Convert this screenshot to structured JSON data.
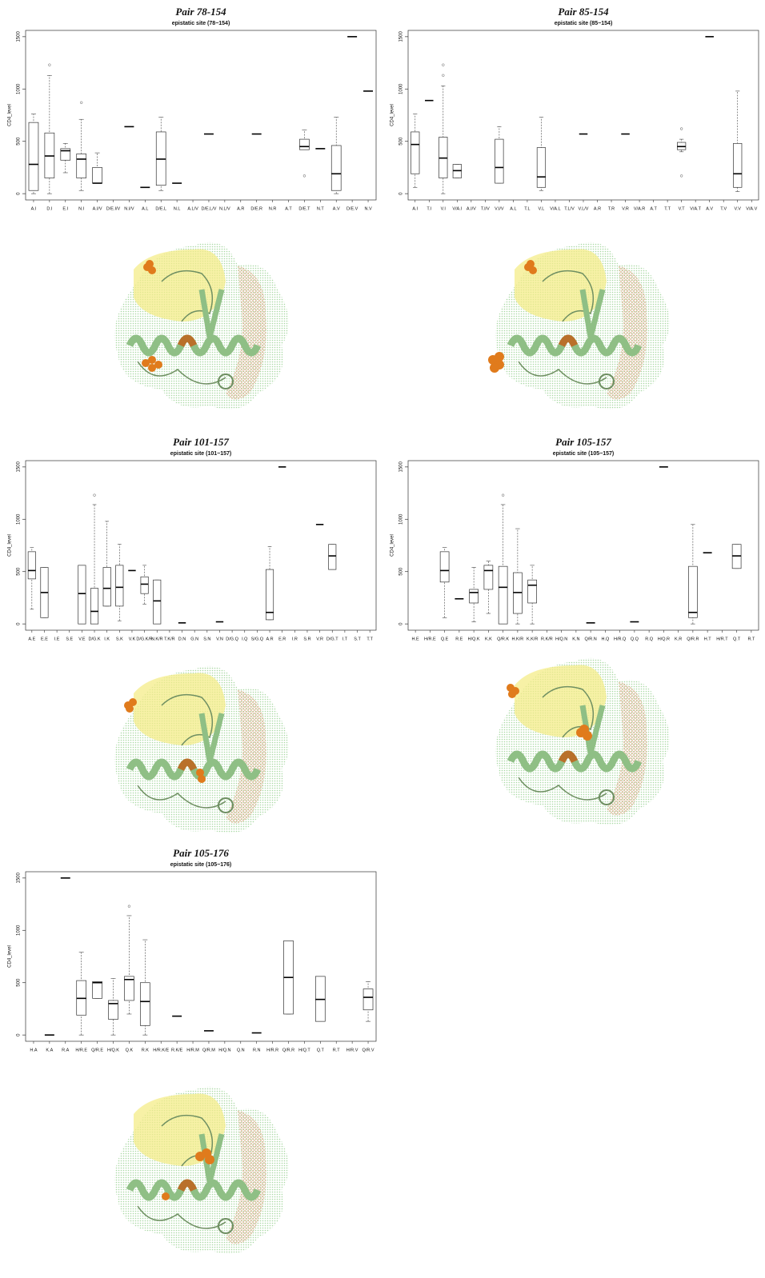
{
  "chart_data": [
    {
      "type": "box",
      "title": "Pair 78-154",
      "subtitle": "epistatic site (78−154)",
      "y_label": "CD4_level",
      "ylim": [
        -60,
        1560
      ],
      "yticks": [
        0,
        500,
        1000,
        1500
      ],
      "categories": [
        "A.I",
        "D.I",
        "E.I",
        "N.I",
        "A.I/V",
        "D/E.I/V",
        "N.I/V",
        "A.L",
        "D/E.L",
        "N.L",
        "A.L/V",
        "D/E.L/V",
        "N.L/V",
        "A.R",
        "D/E.R",
        "N.R",
        "A.T",
        "D/E.T",
        "N.T",
        "A.V",
        "D/E.V",
        "N.V"
      ],
      "boxes": [
        {
          "min": 0,
          "q1": 30,
          "median": 280,
          "q3": 680,
          "max": 760
        },
        {
          "min": 0,
          "q1": 150,
          "median": 360,
          "q3": 580,
          "max": 1130,
          "outliers": [
            1230
          ]
        },
        {
          "min": 200,
          "q1": 320,
          "median": 410,
          "q3": 430,
          "max": 480
        },
        {
          "min": 30,
          "q1": 150,
          "median": 330,
          "q3": 380,
          "max": 710,
          "outliers": [
            870
          ]
        },
        {
          "min": 100,
          "q1": 100,
          "median": 100,
          "q3": 250,
          "max": 390
        },
        null,
        {
          "median": 640
        },
        {
          "median": 60
        },
        {
          "min": 30,
          "q1": 80,
          "median": 330,
          "q3": 590,
          "max": 730
        },
        {
          "median": 100
        },
        null,
        {
          "median": 570
        },
        null,
        null,
        {
          "median": 570
        },
        null,
        null,
        {
          "min": 420,
          "q1": 420,
          "median": 450,
          "q3": 520,
          "max": 610,
          "outliers": [
            170
          ]
        },
        {
          "median": 430
        },
        {
          "min": 0,
          "q1": 30,
          "median": 190,
          "q3": 460,
          "max": 730
        },
        {
          "median": 1500
        },
        {
          "median": 980
        }
      ]
    },
    {
      "type": "box",
      "title": "Pair 85-154",
      "subtitle": "epistatic site (85−154)",
      "y_label": "CD4_level",
      "ylim": [
        -60,
        1560
      ],
      "yticks": [
        0,
        500,
        1000,
        1500
      ],
      "categories": [
        "A.I",
        "T.I",
        "V.I",
        "V/A.I",
        "A.I/V",
        "T.I/V",
        "V.I/V",
        "A.L",
        "T.L",
        "V.L",
        "V/A.L",
        "T.L/V",
        "V.L/V",
        "A.R",
        "T.R",
        "V.R",
        "V/A.R",
        "A.T",
        "T.T",
        "V.T",
        "V/A.T",
        "A.V",
        "T.V",
        "V.V",
        "V/A.V"
      ],
      "boxes": [
        {
          "min": 60,
          "q1": 190,
          "median": 470,
          "q3": 590,
          "max": 760
        },
        {
          "median": 890
        },
        {
          "min": 0,
          "q1": 150,
          "median": 340,
          "q3": 540,
          "max": 1030,
          "outliers": [
            1130,
            1230
          ]
        },
        {
          "min": 150,
          "q1": 150,
          "median": 220,
          "q3": 280,
          "max": 280
        },
        null,
        null,
        {
          "min": 100,
          "q1": 100,
          "median": 250,
          "q3": 520,
          "max": 640
        },
        null,
        null,
        {
          "min": 30,
          "q1": 60,
          "median": 160,
          "q3": 440,
          "max": 730
        },
        null,
        null,
        {
          "median": 570
        },
        null,
        null,
        {
          "median": 570
        },
        null,
        null,
        null,
        {
          "min": 400,
          "q1": 420,
          "median": 450,
          "q3": 490,
          "max": 520,
          "outliers": [
            620,
            170
          ]
        },
        null,
        {
          "median": 1500
        },
        null,
        {
          "min": 20,
          "q1": 60,
          "median": 190,
          "q3": 480,
          "max": 980
        },
        null
      ]
    },
    {
      "type": "box",
      "title": "Pair 101-157",
      "subtitle": "epistatic site (101−157)",
      "y_label": "CD4_level",
      "ylim": [
        -60,
        1560
      ],
      "yticks": [
        0,
        500,
        1000,
        1500
      ],
      "categories": [
        "A.E",
        "E.E",
        "I.E",
        "S.E",
        "V.E",
        "D/G.K",
        "I.K",
        "S.K",
        "V.K",
        "D/G.K/R",
        "N.K/R",
        "T.K/R",
        "D.N",
        "G.N",
        "S.N",
        "V.N",
        "D/G.Q",
        "I.Q",
        "S/G.Q",
        "A.R",
        "E.R",
        "I.R",
        "S.R",
        "V.R",
        "D/G.T",
        "I.T",
        "S.T",
        "T.T"
      ],
      "boxes": [
        {
          "min": 140,
          "q1": 430,
          "median": 510,
          "q3": 690,
          "max": 730
        },
        {
          "min": 60,
          "q1": 60,
          "median": 300,
          "q3": 540,
          "max": 540
        },
        null,
        null,
        {
          "min": 0,
          "q1": 0,
          "median": 290,
          "q3": 560,
          "max": 560
        },
        {
          "min": 0,
          "q1": 0,
          "median": 120,
          "q3": 340,
          "max": 1140,
          "outliers": [
            1230
          ]
        },
        {
          "min": 170,
          "q1": 170,
          "median": 340,
          "q3": 540,
          "max": 980
        },
        {
          "min": 30,
          "q1": 170,
          "median": 350,
          "q3": 560,
          "max": 760
        },
        {
          "median": 510
        },
        {
          "min": 190,
          "q1": 290,
          "median": 380,
          "q3": 450,
          "max": 560
        },
        {
          "min": 0,
          "q1": 0,
          "median": 220,
          "q3": 420,
          "max": 420
        },
        null,
        {
          "median": 10
        },
        null,
        null,
        {
          "median": 20
        },
        null,
        null,
        null,
        {
          "min": 40,
          "q1": 40,
          "median": 110,
          "q3": 520,
          "max": 740
        },
        {
          "median": 1500
        },
        null,
        null,
        {
          "median": 950
        },
        {
          "min": 520,
          "q1": 520,
          "median": 650,
          "q3": 760,
          "max": 760
        },
        null,
        null,
        null
      ]
    },
    {
      "type": "box",
      "title": "Pair 105-157",
      "subtitle": "epistatic site (105−157)",
      "y_label": "CD4_level",
      "ylim": [
        -60,
        1560
      ],
      "yticks": [
        0,
        500,
        1000,
        1500
      ],
      "categories": [
        "H.E",
        "H/R.E",
        "Q.E",
        "R.E",
        "H/Q.K",
        "K.K",
        "Q/R.K",
        "H.K/R",
        "K.K/R",
        "R.K/R",
        "H/Q.N",
        "K.N",
        "Q/R.N",
        "H.Q",
        "H/R.Q",
        "Q.Q",
        "R.Q",
        "H/Q.R",
        "K.R",
        "Q/R.R",
        "H.T",
        "H/R.T",
        "Q.T",
        "R.T"
      ],
      "boxes": [
        null,
        null,
        {
          "min": 60,
          "q1": 400,
          "median": 510,
          "q3": 690,
          "max": 730
        },
        {
          "median": 240
        },
        {
          "min": 20,
          "q1": 200,
          "median": 300,
          "q3": 330,
          "max": 540
        },
        {
          "min": 100,
          "q1": 330,
          "median": 510,
          "q3": 560,
          "max": 600
        },
        {
          "min": 0,
          "q1": 0,
          "median": 350,
          "q3": 550,
          "max": 1140,
          "outliers": [
            1230
          ]
        },
        {
          "min": 0,
          "q1": 100,
          "median": 300,
          "q3": 490,
          "max": 910
        },
        {
          "min": 0,
          "q1": 200,
          "median": 370,
          "q3": 420,
          "max": 560
        },
        null,
        null,
        null,
        {
          "median": 10
        },
        null,
        null,
        {
          "median": 20
        },
        null,
        {
          "median": 1500
        },
        null,
        {
          "min": 0,
          "q1": 60,
          "median": 110,
          "q3": 550,
          "max": 950
        },
        {
          "median": 680
        },
        null,
        {
          "min": 530,
          "q1": 530,
          "median": 650,
          "q3": 760,
          "max": 760
        },
        null
      ]
    },
    {
      "type": "box",
      "title": "Pair 105-176",
      "subtitle": "epistatic site (105−176)",
      "y_label": "CD4_level",
      "ylim": [
        -60,
        1560
      ],
      "yticks": [
        0,
        500,
        1000,
        1500
      ],
      "categories": [
        "H.A",
        "K.A",
        "R.A",
        "H/R.E",
        "Q/R.E",
        "H/Q.K",
        "Q.K",
        "R.K",
        "H/R.K/E",
        "R.K/E",
        "H/R.M",
        "Q/R.M",
        "H/Q.N",
        "Q.N",
        "R.N",
        "H/R.R",
        "Q/R.R",
        "H/Q.T",
        "Q.T",
        "R.T",
        "H/R.V",
        "Q/R.V"
      ],
      "boxes": [
        null,
        {
          "median": 0
        },
        {
          "median": 1500
        },
        {
          "min": 0,
          "q1": 190,
          "median": 350,
          "q3": 520,
          "max": 790
        },
        {
          "min": 350,
          "q1": 350,
          "median": 500,
          "q3": 510,
          "max": 510
        },
        {
          "min": 0,
          "q1": 150,
          "median": 300,
          "q3": 330,
          "max": 540
        },
        {
          "min": 200,
          "q1": 330,
          "median": 530,
          "q3": 560,
          "max": 1140,
          "outliers": [
            1230
          ]
        },
        {
          "min": 0,
          "q1": 90,
          "median": 320,
          "q3": 500,
          "max": 910
        },
        null,
        {
          "median": 180
        },
        null,
        {
          "median": 40
        },
        null,
        null,
        {
          "median": 20
        },
        null,
        {
          "min": 200,
          "q1": 200,
          "median": 550,
          "q3": 900,
          "max": 900
        },
        null,
        {
          "min": 130,
          "q1": 130,
          "median": 340,
          "q3": 560,
          "max": 560
        },
        null,
        null,
        {
          "min": 130,
          "q1": 240,
          "median": 360,
          "q3": 440,
          "max": 510
        }
      ]
    }
  ]
}
